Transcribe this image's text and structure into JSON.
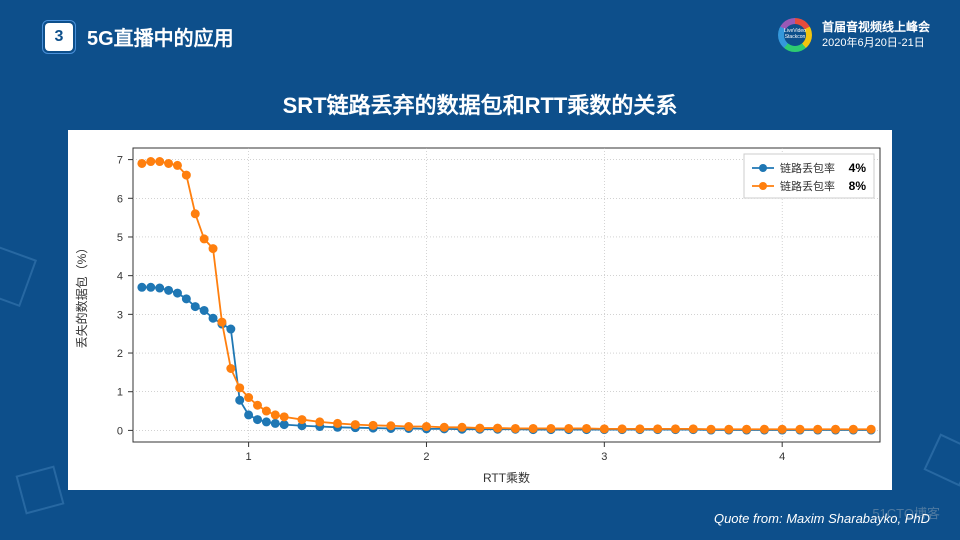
{
  "header": {
    "section_number": "3",
    "section_title": "5G直播中的应用"
  },
  "event": {
    "name": "首届音视频线上峰会",
    "date": "2020年6月20日-21日",
    "logo_text": "LiveVideo Stackcon"
  },
  "chart": {
    "title": "SRT链路丢弃的数据包和RTT乘数的关系",
    "type": "line",
    "xlabel": "RTT乘数",
    "ylabel": "丢失的数据包（%）",
    "xlim": [
      0.35,
      4.55
    ],
    "ylim": [
      -0.3,
      7.3
    ],
    "xticks": [
      1,
      2,
      3,
      4
    ],
    "yticks": [
      0,
      1,
      2,
      3,
      4,
      5,
      6,
      7
    ],
    "background_color": "#ffffff",
    "grid_color": "#b8b8b8",
    "axis_color": "#333333",
    "label_fontsize": 12,
    "tick_fontsize": 11,
    "marker_size": 4,
    "line_width": 1.8,
    "legend": {
      "position": "top-right",
      "border_color": "#cccccc",
      "label_prefix": "链路丢包率",
      "items": [
        {
          "value": "4%",
          "color": "#1f77b4"
        },
        {
          "value": "8%",
          "color": "#ff7f0e"
        }
      ]
    },
    "series": [
      {
        "name": "4%",
        "color": "#1f77b4",
        "x": [
          0.4,
          0.45,
          0.5,
          0.55,
          0.6,
          0.65,
          0.7,
          0.75,
          0.8,
          0.85,
          0.9,
          0.95,
          1.0,
          1.05,
          1.1,
          1.15,
          1.2,
          1.3,
          1.4,
          1.5,
          1.6,
          1.7,
          1.8,
          1.9,
          2.0,
          2.1,
          2.2,
          2.3,
          2.4,
          2.5,
          2.6,
          2.7,
          2.8,
          2.9,
          3.0,
          3.1,
          3.2,
          3.3,
          3.4,
          3.5,
          3.6,
          3.7,
          3.8,
          3.9,
          4.0,
          4.1,
          4.2,
          4.3,
          4.4,
          4.5
        ],
        "y": [
          3.7,
          3.7,
          3.68,
          3.62,
          3.55,
          3.4,
          3.2,
          3.1,
          2.9,
          2.75,
          2.62,
          0.78,
          0.4,
          0.28,
          0.22,
          0.18,
          0.15,
          0.12,
          0.1,
          0.08,
          0.07,
          0.06,
          0.05,
          0.05,
          0.04,
          0.04,
          0.03,
          0.03,
          0.03,
          0.03,
          0.02,
          0.02,
          0.02,
          0.02,
          0.02,
          0.02,
          0.02,
          0.02,
          0.02,
          0.02,
          0.01,
          0.01,
          0.01,
          0.01,
          0.01,
          0.01,
          0.01,
          0.01,
          0.01,
          0.01
        ]
      },
      {
        "name": "8%",
        "color": "#ff7f0e",
        "x": [
          0.4,
          0.45,
          0.5,
          0.55,
          0.6,
          0.65,
          0.7,
          0.75,
          0.8,
          0.85,
          0.9,
          0.95,
          1.0,
          1.05,
          1.1,
          1.15,
          1.2,
          1.3,
          1.4,
          1.5,
          1.6,
          1.7,
          1.8,
          1.9,
          2.0,
          2.1,
          2.2,
          2.3,
          2.4,
          2.5,
          2.6,
          2.7,
          2.8,
          2.9,
          3.0,
          3.1,
          3.2,
          3.3,
          3.4,
          3.5,
          3.6,
          3.7,
          3.8,
          3.9,
          4.0,
          4.1,
          4.2,
          4.3,
          4.4,
          4.5
        ],
        "y": [
          6.9,
          6.95,
          6.95,
          6.9,
          6.85,
          6.6,
          5.6,
          4.95,
          4.7,
          2.8,
          1.6,
          1.1,
          0.85,
          0.65,
          0.5,
          0.4,
          0.35,
          0.28,
          0.22,
          0.18,
          0.15,
          0.13,
          0.12,
          0.1,
          0.1,
          0.08,
          0.08,
          0.06,
          0.06,
          0.05,
          0.05,
          0.05,
          0.05,
          0.05,
          0.04,
          0.04,
          0.04,
          0.04,
          0.04,
          0.04,
          0.03,
          0.03,
          0.03,
          0.03,
          0.03,
          0.03,
          0.03,
          0.03,
          0.03,
          0.03
        ]
      }
    ]
  },
  "quote": "Quote from: Maxim Sharabayko, PhD",
  "watermark": "51CTO博客"
}
